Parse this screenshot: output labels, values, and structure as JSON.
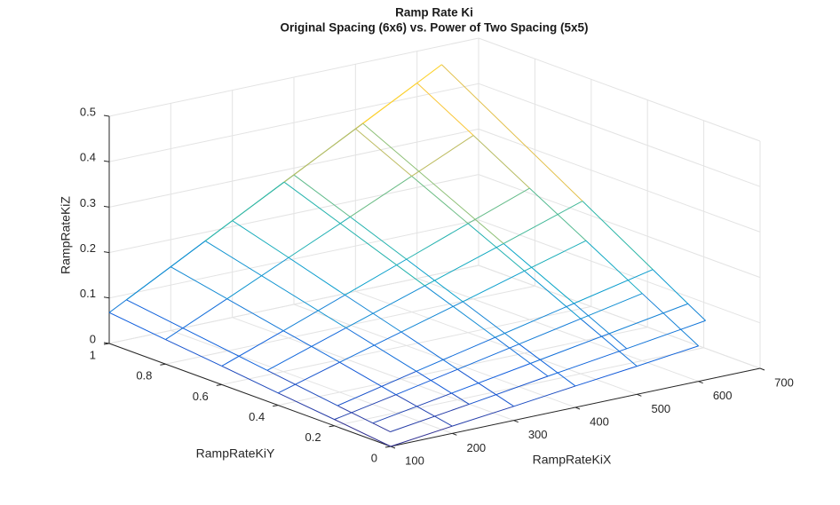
{
  "chart_data": {
    "type": "mesh",
    "title": "Ramp Rate Ki",
    "subtitle": "Original Spacing (6x6) vs. Power of Two Spacing (5x5)",
    "xlabel": "RampRateKiX",
    "ylabel": "RampRateKiY",
    "zlabel": "RampRateKiZ",
    "xlim": [
      100,
      700
    ],
    "xticks": [
      100,
      200,
      300,
      400,
      500,
      600,
      700
    ],
    "ylim": [
      0,
      1
    ],
    "yticks": [
      0,
      0.2,
      0.4,
      0.6,
      0.8,
      1
    ],
    "zlim": [
      0,
      0.5
    ],
    "zticks": [
      0,
      0.1,
      0.2,
      0.3,
      0.4,
      0.5
    ],
    "grid": true,
    "colormap": [
      "#352a87",
      "#0f5cdd",
      "#1481d6",
      "#06a4ca",
      "#2eb7a4",
      "#87bf77",
      "#d1bb59",
      "#fec832",
      "#f9fb0e"
    ],
    "surfaces": [
      {
        "x": [
          100,
          200,
          300,
          400,
          500,
          600
        ],
        "y": [
          0,
          0.2,
          0.4,
          0.6,
          0.8,
          1
        ],
        "z": [
          [
            0,
            0.016,
            0.031,
            0.047,
            0.062,
            0.078
          ],
          [
            0.014,
            0.04,
            0.067,
            0.094,
            0.121,
            0.148
          ],
          [
            0.027,
            0.066,
            0.104,
            0.142,
            0.181,
            0.219
          ],
          [
            0.041,
            0.09,
            0.14,
            0.19,
            0.24,
            0.289
          ],
          [
            0.054,
            0.115,
            0.177,
            0.238,
            0.299,
            0.36
          ],
          [
            0.068,
            0.14,
            0.213,
            0.285,
            0.358,
            0.43
          ]
        ]
      },
      {
        "x": [
          128,
          256,
          384,
          512,
          640
        ],
        "y": [
          0.0625,
          0.125,
          0.25,
          0.5,
          1
        ],
        "z": [
          [
            0.01,
            0.034,
            0.059,
            0.083,
            0.108
          ],
          [
            0.015,
            0.044,
            0.073,
            0.102,
            0.131
          ],
          [
            0.025,
            0.064,
            0.102,
            0.14,
            0.178
          ],
          [
            0.046,
            0.103,
            0.159,
            0.215,
            0.272
          ],
          [
            0.088,
            0.181,
            0.274,
            0.366,
            0.459
          ]
        ]
      }
    ]
  }
}
